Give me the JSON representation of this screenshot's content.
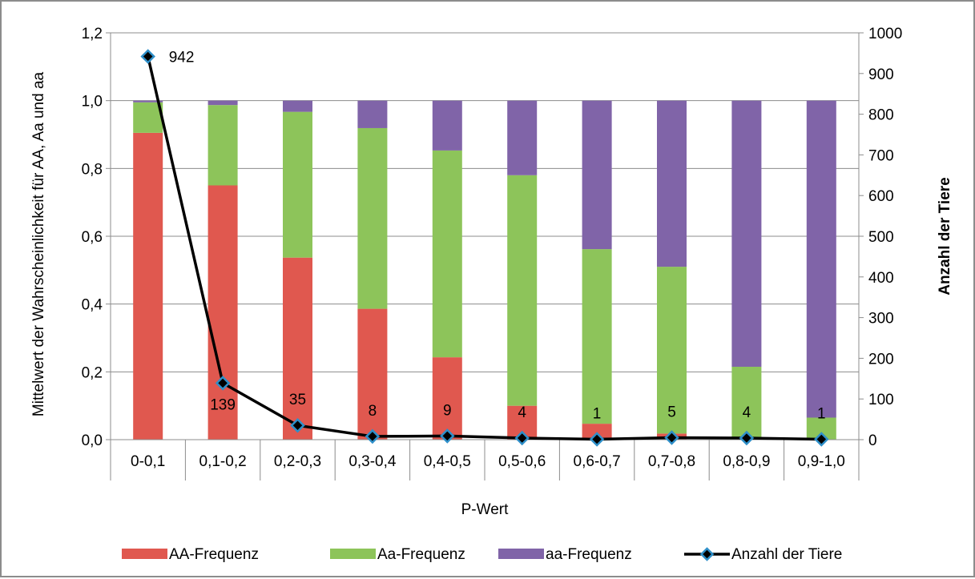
{
  "chart_data": {
    "type": "bar",
    "stacked": true,
    "categories": [
      "0-0,1",
      "0,1-0,2",
      "0,2-0,3",
      "0,3-0,4",
      "0,4-0,5",
      "0,5-0,6",
      "0,6-0,7",
      "0,7-0,8",
      "0,8-0,9",
      "0,9-1,0"
    ],
    "series": [
      {
        "name": "AA-Frequenz",
        "color": "#e0584f",
        "axis": "left",
        "values": [
          0.905,
          0.75,
          0.537,
          0.386,
          0.243,
          0.1,
          0.047,
          0.018,
          0.003,
          0.0
        ]
      },
      {
        "name": "Aa-Frequenz",
        "color": "#8dc45a",
        "axis": "left",
        "values": [
          0.09,
          0.237,
          0.43,
          0.533,
          0.61,
          0.68,
          0.515,
          0.492,
          0.212,
          0.065
        ]
      },
      {
        "name": "aa-Frequenz",
        "color": "#8064a8",
        "axis": "left",
        "values": [
          0.005,
          0.013,
          0.033,
          0.081,
          0.147,
          0.22,
          0.438,
          0.49,
          0.785,
          0.935
        ]
      }
    ],
    "line_series": {
      "name": "Anzahl der Tiere",
      "color": "#000000",
      "marker_color": "#2e8fc9",
      "axis": "right",
      "values": [
        942,
        139,
        35,
        8,
        9,
        4,
        1,
        5,
        4,
        1
      ],
      "labels": [
        "942",
        "139",
        "35",
        "8",
        "9",
        "4",
        "1",
        "5",
        "4",
        "1"
      ]
    },
    "xlabel": "P-Wert",
    "ylabel": "Mittelwert der Wahrscheinlichkeit für AA, Aa und aa",
    "y2label": "Anzahl der Tiere",
    "ylim": [
      0,
      1.2
    ],
    "y2lim": [
      0,
      1000
    ],
    "yticks": [
      "0,0",
      "0,2",
      "0,4",
      "0,6",
      "0,8",
      "1,0",
      "1,2"
    ],
    "y2ticks": [
      "0",
      "100",
      "200",
      "300",
      "400",
      "500",
      "600",
      "700",
      "800",
      "900",
      "1000"
    ],
    "grid": true,
    "legend_position": "bottom"
  }
}
